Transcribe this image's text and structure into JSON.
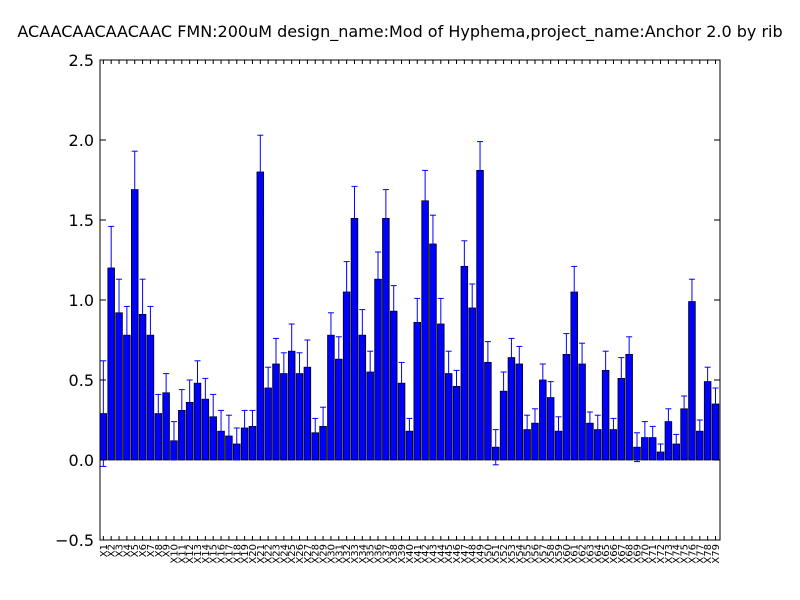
{
  "chart_data": {
    "type": "bar",
    "title": "ACAACAACAACAAC  FMN:200uM  design_name:Mod of Hyphema,project_name:Anchor 2.0 by rib",
    "ylim": [
      -0.5,
      2.5
    ],
    "yticks": [
      "−0.5",
      "0.0",
      "0.5",
      "1.0",
      "1.5",
      "2.0",
      "2.5"
    ],
    "ytick_values": [
      -0.5,
      0.0,
      0.5,
      1.0,
      1.5,
      2.0,
      2.5
    ],
    "grid": false,
    "legend": "none",
    "colors": {
      "bar": "#0000ff",
      "edge": "#000000",
      "error": "#0000ff"
    },
    "categories": [
      "X1",
      "X2",
      "X3",
      "X4",
      "X5",
      "X6",
      "X7",
      "X8",
      "X9",
      "X10",
      "X11",
      "X12",
      "X13",
      "X14",
      "X15",
      "X16",
      "X17",
      "X18",
      "X19",
      "X20",
      "X21",
      "X22",
      "X23",
      "X24",
      "X25",
      "X26",
      "X27",
      "X28",
      "X29",
      "X30",
      "X31",
      "X32",
      "X33",
      "X34",
      "X35",
      "X36",
      "X37",
      "X38",
      "X39",
      "X40",
      "X41",
      "X42",
      "X43",
      "X44",
      "X45",
      "X46",
      "X47",
      "X48",
      "X49",
      "X50",
      "X51",
      "X52",
      "X53",
      "X54",
      "X55",
      "X56",
      "X57",
      "X58",
      "X59",
      "X60",
      "X61",
      "X62",
      "X63",
      "X64",
      "X65",
      "X66",
      "X67",
      "X68",
      "X69",
      "X70",
      "X71",
      "X72",
      "X73",
      "X74",
      "X75",
      "X76",
      "X77",
      "X78",
      "X79"
    ],
    "values": [
      0.29,
      1.2,
      0.92,
      0.78,
      1.69,
      0.91,
      0.78,
      0.29,
      0.42,
      0.12,
      0.31,
      0.36,
      0.48,
      0.38,
      0.27,
      0.18,
      0.15,
      0.1,
      0.2,
      0.21,
      1.8,
      0.45,
      0.6,
      0.54,
      0.68,
      0.54,
      0.58,
      0.17,
      0.21,
      0.78,
      0.63,
      1.05,
      1.51,
      0.78,
      0.55,
      1.13,
      1.51,
      0.93,
      0.48,
      0.18,
      0.86,
      1.62,
      1.35,
      0.85,
      0.54,
      0.46,
      1.21,
      0.95,
      1.81,
      0.61,
      0.08,
      0.43,
      0.64,
      0.6,
      0.19,
      0.23,
      0.5,
      0.39,
      0.18,
      0.66,
      1.05,
      0.6,
      0.23,
      0.19,
      0.56,
      0.19,
      0.51,
      0.66,
      0.08,
      0.14,
      0.14,
      0.05,
      0.24,
      0.1,
      0.32,
      0.99,
      0.18,
      0.49,
      0.35
    ],
    "errors": [
      0.33,
      0.26,
      0.21,
      0.18,
      0.24,
      0.22,
      0.18,
      0.12,
      0.12,
      0.12,
      0.13,
      0.14,
      0.14,
      0.13,
      0.14,
      0.13,
      0.13,
      0.1,
      0.11,
      0.1,
      0.23,
      0.13,
      0.16,
      0.13,
      0.17,
      0.13,
      0.17,
      0.09,
      0.12,
      0.14,
      0.14,
      0.19,
      0.2,
      0.16,
      0.13,
      0.17,
      0.18,
      0.16,
      0.13,
      0.08,
      0.15,
      0.19,
      0.18,
      0.16,
      0.14,
      0.1,
      0.16,
      0.15,
      0.18,
      0.13,
      0.11,
      0.12,
      0.12,
      0.11,
      0.09,
      0.09,
      0.1,
      0.1,
      0.09,
      0.13,
      0.16,
      0.13,
      0.07,
      0.09,
      0.12,
      0.07,
      0.13,
      0.11,
      0.09,
      0.1,
      0.07,
      0.05,
      0.08,
      0.06,
      0.08,
      0.14,
      0.07,
      0.09,
      0.1
    ]
  }
}
